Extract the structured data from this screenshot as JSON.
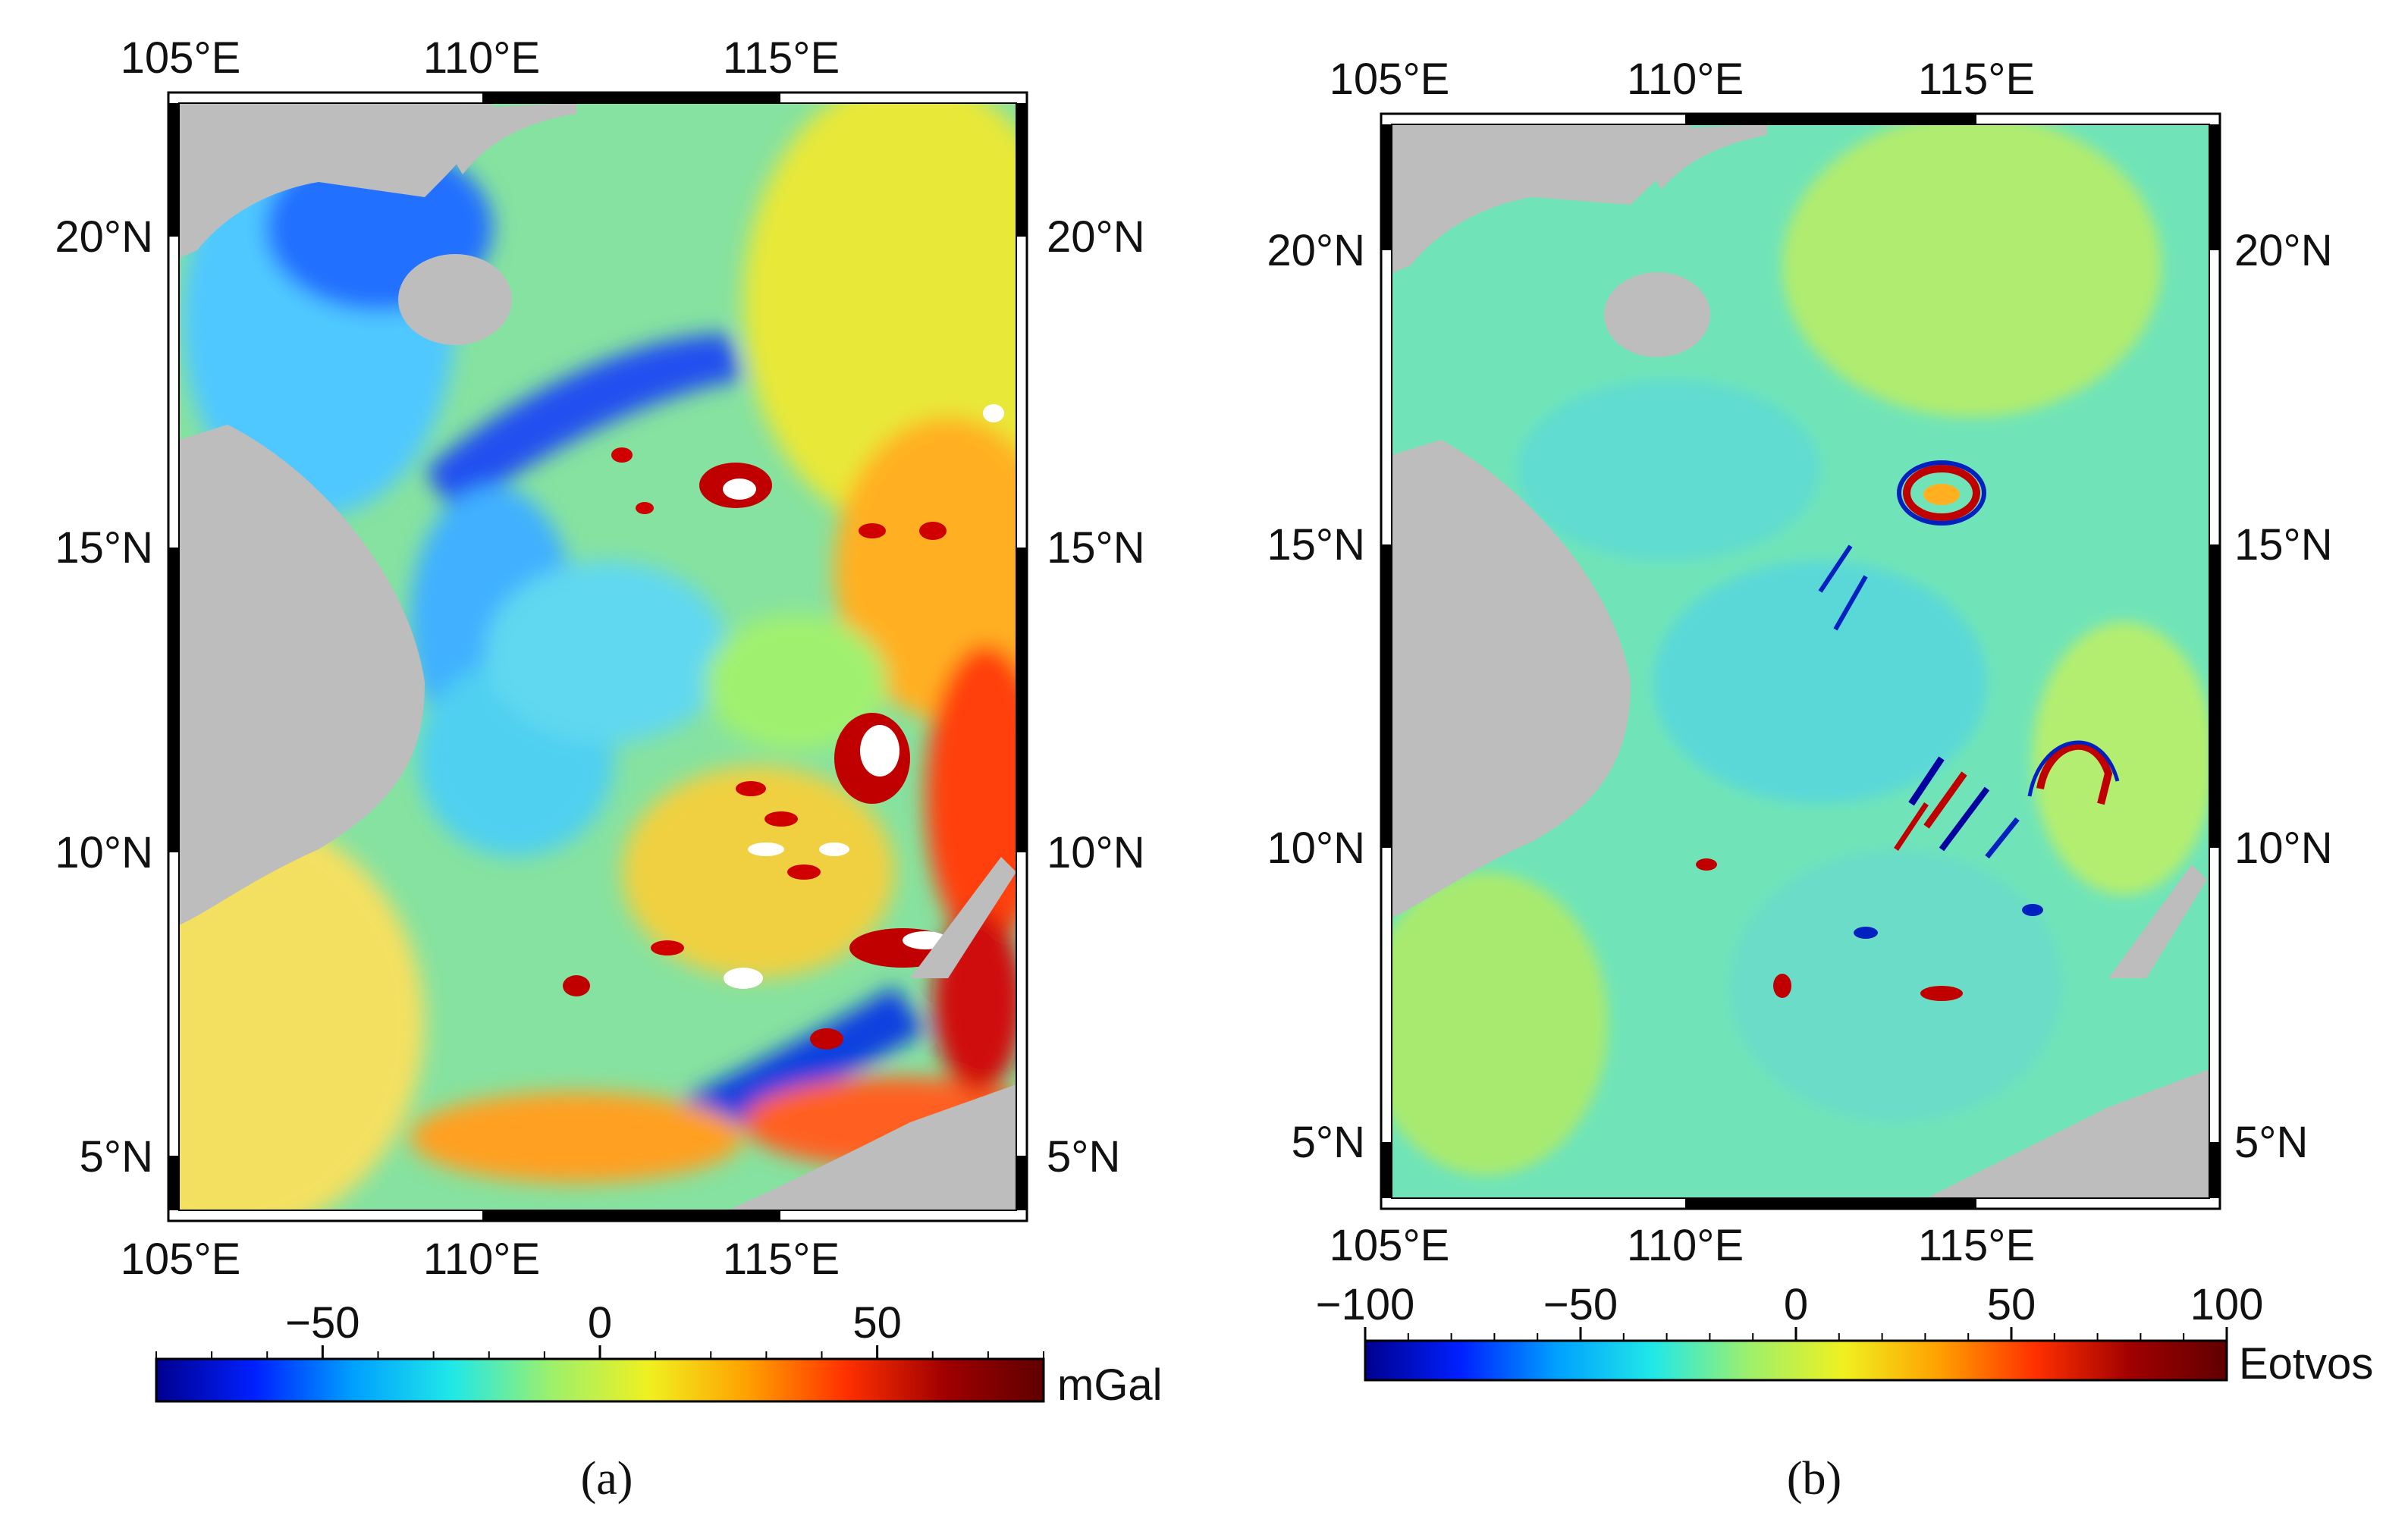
{
  "panels": [
    {
      "id": "a",
      "caption": "(a)",
      "lon_ticks_top": [
        "105°E",
        "110°E",
        "115°E"
      ],
      "lon_ticks_bottom": [
        "105°E",
        "110°E",
        "115°E"
      ],
      "lat_ticks_left": [
        "20°N",
        "15°N",
        "10°N",
        "5°N"
      ],
      "lat_ticks_right": [
        "20°N",
        "15°N",
        "10°N",
        "5°N"
      ],
      "colorbar": {
        "unit": "mGal",
        "range": [
          -80,
          80
        ],
        "tick_labels": [
          "−50",
          "0",
          "50"
        ],
        "tick_values": [
          -50,
          0,
          50
        ],
        "colormap": [
          "#00008f",
          "#0020ff",
          "#00a0ff",
          "#20e8e8",
          "#9cf06c",
          "#f0f020",
          "#ffa000",
          "#ff3000",
          "#a00000",
          "#600000"
        ]
      }
    },
    {
      "id": "b",
      "caption": "(b)",
      "lon_ticks_top": [
        "105°E",
        "110°E",
        "115°E"
      ],
      "lon_ticks_bottom": [
        "105°E",
        "110°E",
        "115°E"
      ],
      "lat_ticks_left": [
        "20°N",
        "15°N",
        "10°N",
        "5°N"
      ],
      "lat_ticks_right": [
        "20°N",
        "15°N",
        "10°N",
        "5°N"
      ],
      "colorbar": {
        "unit": "Eotvos",
        "range": [
          -100,
          100
        ],
        "tick_labels": [
          "−100",
          "−50",
          "0",
          "50",
          "100"
        ],
        "tick_values": [
          -100,
          -50,
          0,
          50,
          100
        ],
        "colormap": [
          "#00008f",
          "#0020ff",
          "#00a0ff",
          "#20e8e8",
          "#9cf06c",
          "#f0f020",
          "#ffa000",
          "#ff3000",
          "#a00000",
          "#600000"
        ]
      }
    }
  ],
  "colors": {
    "land": "#bdbdbd",
    "background_a": "#7ee0b0",
    "background_b": "#66e6c0"
  }
}
